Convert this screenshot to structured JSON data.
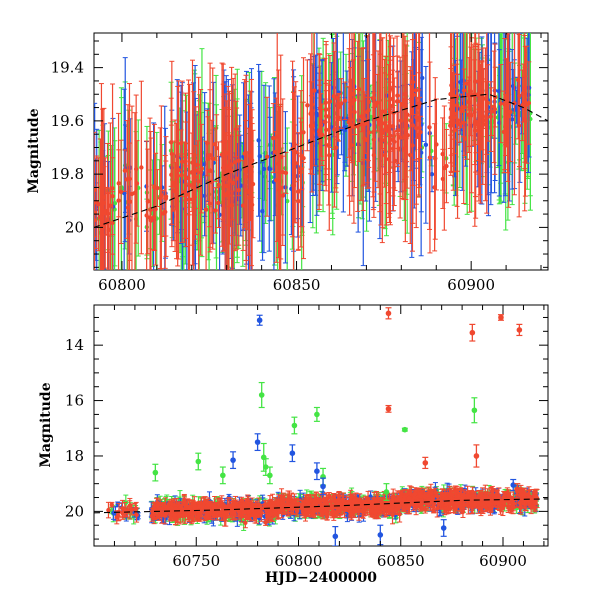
{
  "figure": {
    "xlabel": "HJD−2400000"
  },
  "chart_data": [
    {
      "type": "scatter",
      "title": "",
      "xlabel": "",
      "ylabel": "Magnitude",
      "xlim": [
        60792,
        60922
      ],
      "ylim": [
        20.16,
        19.27
      ],
      "y_inverted": true,
      "x_ticks": [
        60800,
        60850,
        60900
      ],
      "y_ticks": [
        19.4,
        19.6,
        19.8,
        20.0
      ],
      "y_tick_labels": [
        "19.4",
        "19.6",
        "19.8",
        "20"
      ],
      "series": [
        {
          "color": "#44e444",
          "key": "green"
        },
        {
          "color": "#2255e0",
          "key": "blue"
        },
        {
          "color": "#f04830",
          "key": "red"
        }
      ],
      "trend_curve": {
        "style": "dashed",
        "color": "#000000",
        "x": [
          60792,
          60810,
          60830,
          60850,
          60870,
          60890,
          60905,
          60915,
          60922
        ],
        "y": [
          20.0,
          19.92,
          19.8,
          19.7,
          19.6,
          19.52,
          19.5,
          19.55,
          19.6
        ]
      },
      "point_groups": [
        {
          "x_range": [
            60792,
            60798
          ],
          "y_center": 19.93,
          "y_spread": 0.1,
          "density": 2.2
        },
        {
          "x_range": [
            60799,
            60806
          ],
          "y_center": 19.85,
          "y_spread": 0.12,
          "density": 1.2
        },
        {
          "x_range": [
            60807,
            60813
          ],
          "y_center": 19.9,
          "y_spread": 0.12,
          "density": 1.5
        },
        {
          "x_range": [
            60814,
            60838
          ],
          "y_center": 19.82,
          "y_spread": 0.13,
          "density": 2.6
        },
        {
          "x_range": [
            60839,
            60852
          ],
          "y_center": 19.78,
          "y_spread": 0.15,
          "density": 1.6
        },
        {
          "x_range": [
            60853,
            60886
          ],
          "y_center": 19.6,
          "y_spread": 0.13,
          "density": 2.6
        },
        {
          "x_range": [
            60887,
            60893
          ],
          "y_center": 19.75,
          "y_spread": 0.15,
          "density": 0.8
        },
        {
          "x_range": [
            60894,
            60917
          ],
          "y_center": 19.55,
          "y_spread": 0.11,
          "density": 2.6
        }
      ]
    },
    {
      "type": "scatter",
      "title": "",
      "xlabel": "HJD−2400000",
      "ylabel": "Magnitude",
      "xlim": [
        60700,
        60922
      ],
      "ylim": [
        21.25,
        12.55
      ],
      "y_inverted": true,
      "x_ticks": [
        60750,
        60800,
        60850,
        60900
      ],
      "y_ticks": [
        14,
        16,
        18,
        20
      ],
      "y_tick_labels": [
        "14",
        "16",
        "18",
        "20"
      ],
      "series": [
        {
          "color": "#44e444",
          "key": "green"
        },
        {
          "color": "#2255e0",
          "key": "blue"
        },
        {
          "color": "#f04830",
          "key": "red"
        }
      ],
      "trend_curve": {
        "style": "dashed",
        "color": "#000000",
        "x": [
          60700,
          60760,
          60820,
          60880,
          60922
        ],
        "y": [
          20.05,
          19.95,
          19.8,
          19.6,
          19.55
        ]
      },
      "point_groups": [
        {
          "x_range": [
            60707,
            60722
          ],
          "y_center": 20.0,
          "y_spread": 0.25,
          "density": 0.9
        },
        {
          "x_range": [
            60728,
            60790
          ],
          "y_center": 19.95,
          "y_spread": 0.3,
          "density": 3.0
        },
        {
          "x_range": [
            60790,
            60850
          ],
          "y_center": 19.8,
          "y_spread": 0.3,
          "density": 3.2
        },
        {
          "x_range": [
            60850,
            60917
          ],
          "y_center": 19.6,
          "y_spread": 0.3,
          "density": 3.2
        }
      ],
      "outliers": [
        {
          "series": "blue",
          "x": 60781,
          "y": 13.1,
          "err": 0.18
        },
        {
          "series": "red",
          "x": 60844,
          "y": 12.85,
          "err": 0.2
        },
        {
          "series": "red",
          "x": 60899,
          "y": 13.0,
          "err": 0.1
        },
        {
          "series": "red",
          "x": 60908,
          "y": 13.45,
          "err": 0.2
        },
        {
          "series": "red",
          "x": 60885,
          "y": 13.55,
          "err": 0.3
        },
        {
          "series": "green",
          "x": 60782,
          "y": 15.8,
          "err": 0.45
        },
        {
          "series": "red",
          "x": 60844,
          "y": 16.3,
          "err": 0.12
        },
        {
          "series": "green",
          "x": 60886,
          "y": 16.35,
          "err": 0.45
        },
        {
          "series": "green",
          "x": 60809,
          "y": 16.5,
          "err": 0.25
        },
        {
          "series": "green",
          "x": 60798,
          "y": 16.9,
          "err": 0.3
        },
        {
          "series": "green",
          "x": 60852,
          "y": 17.05,
          "err": 0.05
        },
        {
          "series": "blue",
          "x": 60780,
          "y": 17.5,
          "err": 0.3
        },
        {
          "series": "blue",
          "x": 60797,
          "y": 17.9,
          "err": 0.3
        },
        {
          "series": "green",
          "x": 60783,
          "y": 18.05,
          "err": 0.5
        },
        {
          "series": "green",
          "x": 60751,
          "y": 18.2,
          "err": 0.3
        },
        {
          "series": "blue",
          "x": 60768,
          "y": 18.15,
          "err": 0.3
        },
        {
          "series": "green",
          "x": 60784,
          "y": 18.4,
          "err": 0.3
        },
        {
          "series": "red",
          "x": 60887,
          "y": 18.0,
          "err": 0.4
        },
        {
          "series": "red",
          "x": 60862,
          "y": 18.25,
          "err": 0.2
        },
        {
          "series": "green",
          "x": 60730,
          "y": 18.6,
          "err": 0.3
        },
        {
          "series": "green",
          "x": 60763,
          "y": 18.7,
          "err": 0.3
        },
        {
          "series": "blue",
          "x": 60809,
          "y": 18.55,
          "err": 0.3
        },
        {
          "series": "green",
          "x": 60786,
          "y": 18.7,
          "err": 0.3
        },
        {
          "series": "green",
          "x": 60812,
          "y": 18.75,
          "err": 0.3
        },
        {
          "series": "blue",
          "x": 60812,
          "y": 19.1,
          "err": 0.3
        },
        {
          "series": "blue",
          "x": 60905,
          "y": 19.05,
          "err": 0.2
        },
        {
          "series": "red",
          "x": 60907,
          "y": 19.2,
          "err": 0.2
        },
        {
          "series": "green",
          "x": 60843,
          "y": 19.3,
          "err": 0.3
        },
        {
          "series": "blue",
          "x": 60818,
          "y": 20.9,
          "err": 0.35
        },
        {
          "series": "blue",
          "x": 60840,
          "y": 20.85,
          "err": 0.35
        },
        {
          "series": "blue",
          "x": 60871,
          "y": 20.6,
          "err": 0.3
        }
      ]
    }
  ]
}
